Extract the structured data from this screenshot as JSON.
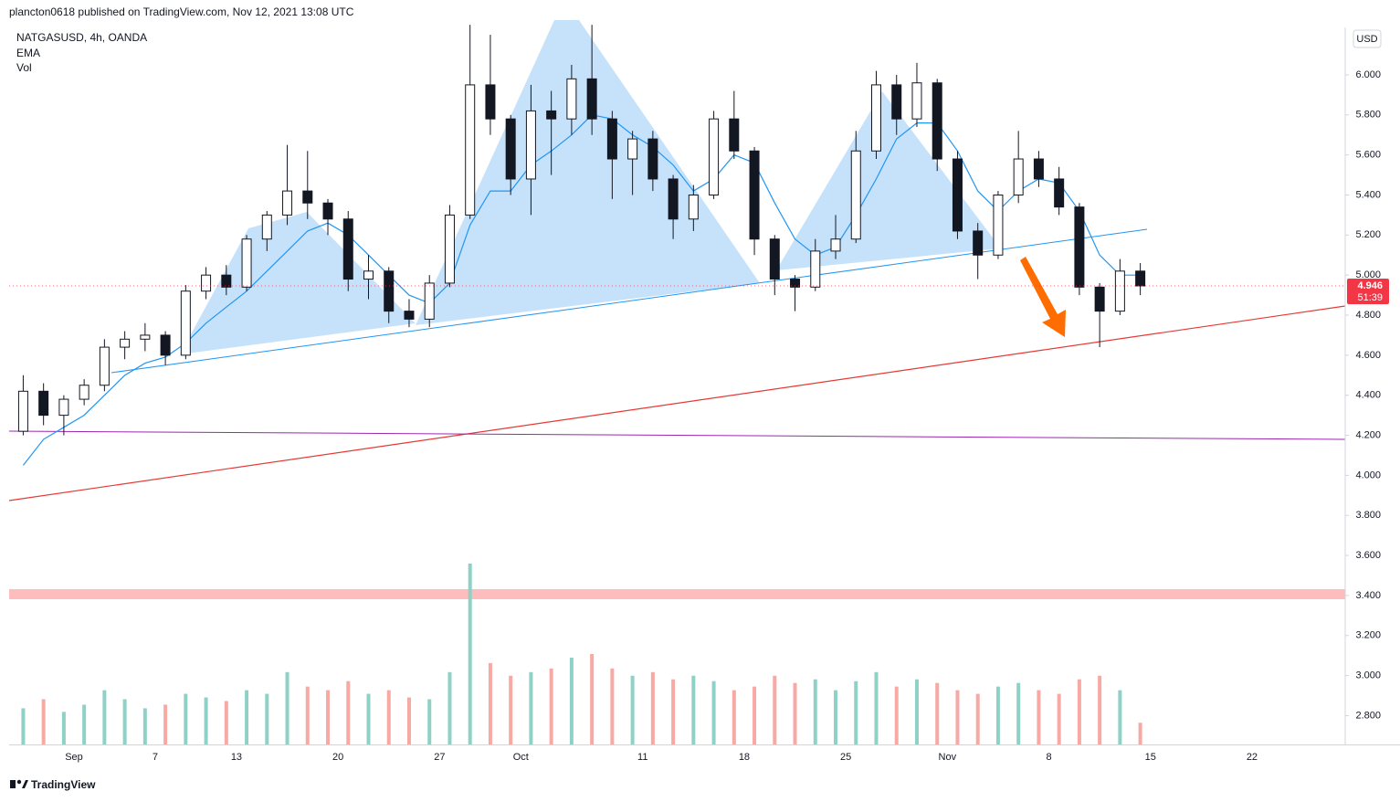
{
  "header": "plancton0618 published on TradingView.com, Nov 12, 2021 13:08 UTC",
  "footer": "TradingView",
  "chart_data": {
    "type": "candlestick",
    "title": "NATGASUSD, 4h, OANDA",
    "currency": "USD",
    "categories": [
      null,
      null,
      null,
      "Sep",
      null,
      null,
      null,
      "7",
      null,
      null,
      null,
      "13",
      null,
      null,
      null,
      null,
      "20",
      null,
      null,
      null,
      null,
      "27",
      null,
      null,
      null,
      "Oct",
      null,
      null,
      null,
      null,
      null,
      "11",
      null,
      null,
      null,
      null,
      "18",
      null,
      null,
      null,
      null,
      "25",
      null,
      null,
      null,
      null,
      "Nov",
      null,
      null,
      null,
      null,
      "8",
      null,
      null,
      null,
      null,
      "15",
      null,
      null,
      null,
      null,
      "22",
      null,
      null,
      null,
      null
    ],
    "open": [
      4.22,
      4.42,
      4.3,
      4.38,
      4.45,
      4.64,
      4.68,
      4.7,
      4.6,
      4.92,
      5.0,
      4.94,
      5.18,
      5.3,
      5.42,
      5.36,
      5.28,
      4.98,
      5.02,
      4.82,
      4.78,
      4.96,
      5.3,
      5.95,
      5.78,
      5.48,
      5.82,
      5.78,
      5.98,
      5.78,
      5.58,
      5.68,
      5.48,
      5.28,
      5.4,
      5.78,
      5.62,
      5.18,
      4.98,
      4.94,
      5.12,
      5.18,
      5.62,
      5.95,
      5.78,
      5.96,
      5.58,
      5.22,
      5.1,
      5.4,
      5.58,
      5.48,
      5.34,
      4.94,
      4.82,
      5.02,
      null,
      null,
      null,
      null,
      null,
      null,
      null,
      null,
      null,
      null
    ],
    "high": [
      4.5,
      4.46,
      4.4,
      4.48,
      4.68,
      4.72,
      4.76,
      4.72,
      4.95,
      5.04,
      5.05,
      5.2,
      5.32,
      5.65,
      5.62,
      5.38,
      5.32,
      5.1,
      5.04,
      4.88,
      5.0,
      5.35,
      6.25,
      6.2,
      5.8,
      5.95,
      5.92,
      6.05,
      6.25,
      5.82,
      5.72,
      5.72,
      5.5,
      5.45,
      5.82,
      5.92,
      5.64,
      5.2,
      5.0,
      5.18,
      5.3,
      5.72,
      6.02,
      6.0,
      6.06,
      5.98,
      5.62,
      5.26,
      5.42,
      5.72,
      5.62,
      5.54,
      5.36,
      4.96,
      5.08,
      5.06,
      null,
      null,
      null,
      null,
      null,
      null,
      null,
      null,
      null,
      null
    ],
    "low": [
      4.2,
      4.25,
      4.2,
      4.35,
      4.42,
      4.58,
      4.62,
      4.55,
      4.58,
      4.88,
      4.9,
      4.92,
      5.12,
      5.25,
      5.28,
      5.2,
      4.92,
      4.88,
      4.76,
      4.74,
      4.74,
      4.94,
      5.28,
      5.7,
      5.4,
      5.3,
      5.5,
      5.7,
      5.7,
      5.38,
      5.4,
      5.42,
      5.18,
      5.22,
      5.38,
      5.58,
      5.1,
      4.9,
      4.82,
      4.92,
      5.08,
      5.16,
      5.58,
      5.7,
      5.74,
      5.52,
      5.18,
      4.98,
      5.08,
      5.36,
      5.44,
      5.3,
      4.9,
      4.64,
      4.8,
      4.9,
      null,
      null,
      null,
      null,
      null,
      null,
      null,
      null,
      null,
      null
    ],
    "close": [
      4.42,
      4.3,
      4.38,
      4.45,
      4.64,
      4.68,
      4.7,
      4.6,
      4.92,
      5.0,
      4.94,
      5.18,
      5.3,
      5.42,
      5.36,
      5.28,
      4.98,
      5.02,
      4.82,
      4.78,
      4.96,
      5.3,
      5.95,
      5.78,
      5.48,
      5.82,
      5.78,
      5.98,
      5.78,
      5.58,
      5.68,
      5.48,
      5.28,
      5.4,
      5.78,
      5.62,
      5.18,
      4.98,
      4.94,
      5.12,
      5.18,
      5.62,
      5.95,
      5.78,
      5.96,
      5.58,
      5.22,
      5.1,
      5.4,
      5.58,
      5.48,
      5.34,
      4.94,
      4.82,
      5.02,
      4.946,
      null,
      null,
      null,
      null,
      null,
      null,
      null,
      null,
      null,
      null
    ],
    "up_color": "#ffffff",
    "down_color": "#131722",
    "ema": {
      "name": "EMA",
      "color": "#2196f3",
      "values": [
        4.05,
        4.18,
        4.24,
        4.3,
        4.4,
        4.5,
        4.56,
        4.59,
        4.66,
        4.76,
        4.84,
        4.92,
        5.02,
        5.12,
        5.22,
        5.26,
        5.2,
        5.1,
        5.0,
        4.9,
        4.86,
        4.96,
        5.25,
        5.42,
        5.42,
        5.55,
        5.62,
        5.7,
        5.8,
        5.78,
        5.7,
        5.64,
        5.55,
        5.42,
        5.48,
        5.6,
        5.56,
        5.36,
        5.18,
        5.1,
        5.14,
        5.3,
        5.48,
        5.68,
        5.76,
        5.76,
        5.62,
        5.42,
        5.32,
        5.42,
        5.48,
        5.46,
        5.32,
        5.1,
        5.0,
        5.0,
        null,
        null,
        null,
        null,
        null,
        null,
        null,
        null,
        null,
        null
      ]
    },
    "volume": {
      "name": "Vol",
      "up_color": "#8fd1c6",
      "down_color": "#f7a9a4",
      "values": [
        20,
        25,
        18,
        22,
        30,
        25,
        20,
        22,
        28,
        26,
        24,
        30,
        28,
        40,
        32,
        30,
        35,
        28,
        30,
        26,
        25,
        40,
        100,
        45,
        38,
        40,
        42,
        48,
        50,
        42,
        38,
        40,
        36,
        38,
        35,
        30,
        32,
        38,
        34,
        36,
        30,
        35,
        40,
        32,
        36,
        34,
        30,
        28,
        32,
        34,
        30,
        28,
        36,
        38,
        30,
        12,
        null,
        null,
        null,
        null,
        null,
        null,
        null,
        null,
        null,
        null
      ]
    },
    "last_price": 4.946,
    "last_price_color": "#f23645",
    "countdown": "51:39",
    "ylim": [
      2.656,
      6.237
    ],
    "yticks": [
      {
        "value": 2.8,
        "label": "2.800"
      },
      {
        "value": 3.0,
        "label": "3.000"
      },
      {
        "value": 3.2,
        "label": "3.200"
      },
      {
        "value": 3.4,
        "label": "3.400"
      },
      {
        "value": 3.6,
        "label": "3.600"
      },
      {
        "value": 3.8,
        "label": "3.800"
      },
      {
        "value": 4.0,
        "label": "4.000"
      },
      {
        "value": 4.2,
        "label": "4.200"
      },
      {
        "value": 4.4,
        "label": "4.400"
      },
      {
        "value": 4.6,
        "label": "4.600"
      },
      {
        "value": 4.8,
        "label": "4.800"
      },
      {
        "value": 5.0,
        "label": "5.000"
      },
      {
        "value": 5.2,
        "label": "5.200"
      },
      {
        "value": 5.4,
        "label": "5.400"
      },
      {
        "value": 5.6,
        "label": "5.600"
      },
      {
        "value": 5.8,
        "label": "5.800"
      },
      {
        "value": 6.0,
        "label": "6.000"
      }
    ]
  }
}
